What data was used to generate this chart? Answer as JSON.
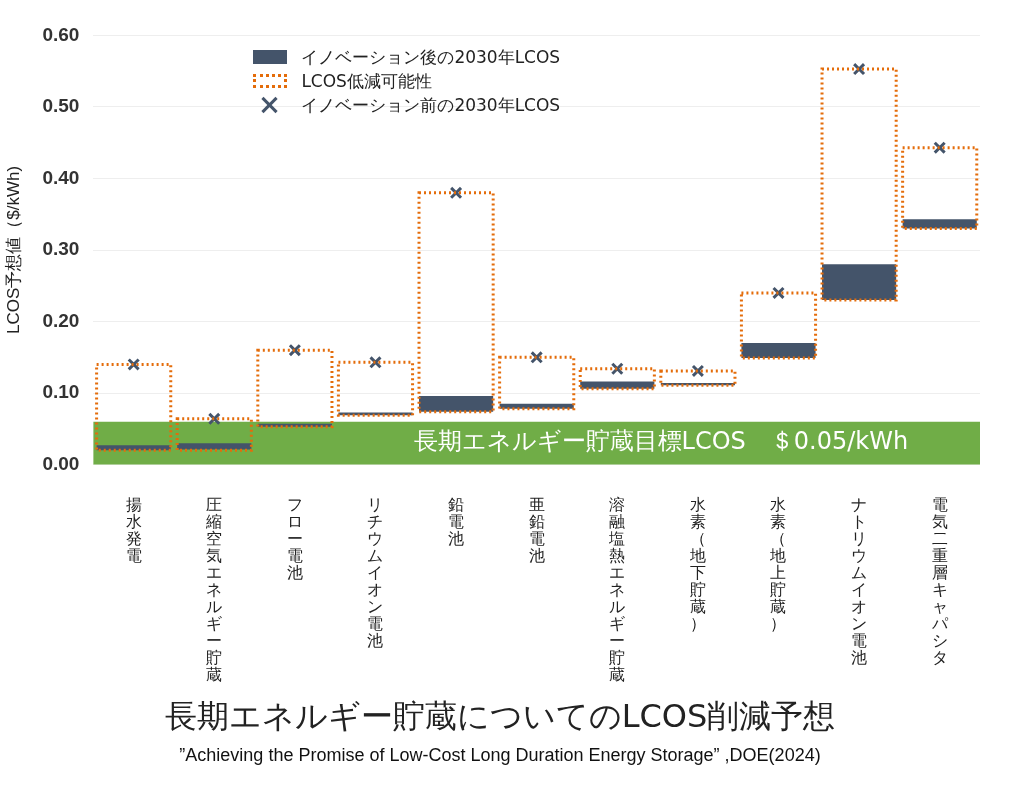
{
  "chart_data": {
    "type": "bar",
    "title": "長期エネルギー貯蔵についてのLCOS削減予想",
    "ylabel": "LCOS予想値（$/kWh)",
    "categories": [
      "揚水発電",
      "圧縮空気エネルギー貯蔵",
      "フロー電池",
      "リチウムイオン電池",
      "鉛電池",
      "亜鉛電池",
      "溶融塩熱エネルギー貯蔵",
      "水素（地下貯蔵）",
      "水素（地上貯蔵）",
      "ナトリウムイオン電池",
      "電気二重層キャパシタ"
    ],
    "series": [
      {
        "name": "イノベーション後の2030年LCOS",
        "color": "#44546a",
        "base": [
          0.02,
          0.021,
          0.053,
          0.069,
          0.074,
          0.078,
          0.106,
          0.111,
          0.149,
          0.23,
          0.33
        ],
        "values": [
          0.007,
          0.009,
          0.004,
          0.004,
          0.022,
          0.007,
          0.01,
          0.003,
          0.021,
          0.05,
          0.013
        ]
      },
      {
        "name": "LCOS低減可能性",
        "color": "#e46c0a",
        "line_style": "dotted",
        "base": [
          0.02,
          0.02,
          0.053,
          0.069,
          0.074,
          0.078,
          0.106,
          0.111,
          0.149,
          0.23,
          0.33
        ],
        "values": [
          0.12,
          0.044,
          0.107,
          0.074,
          0.306,
          0.072,
          0.028,
          0.02,
          0.091,
          0.323,
          0.113
        ]
      },
      {
        "name": "イノベーション前の2030年LCOS",
        "type": "scatter",
        "color": "#44546a",
        "marker": "cross",
        "x": [
          "揚水発電",
          "圧縮空気エネルギー貯蔵",
          "フロー電池",
          "リチウムイオン電池",
          "鉛電池",
          "亜鉛電池",
          "溶融塩熱エネルギー貯蔵",
          "水素（地下貯蔵）",
          "水素（地上貯蔵）",
          "ナトリウムイオン電池",
          "電気二重層キャパシタ"
        ],
        "values": [
          0.14,
          0.064,
          0.16,
          0.143,
          0.38,
          0.15,
          0.134,
          0.131,
          0.24,
          0.553,
          0.443
        ]
      }
    ],
    "ylim": [
      0,
      0.6
    ],
    "yticks": [
      {
        "value": 0,
        "label": "0.00"
      },
      {
        "value": 0.1,
        "label": "0.10"
      },
      {
        "value": 0.2,
        "label": "0.20"
      },
      {
        "value": 0.3,
        "label": "0.30"
      },
      {
        "value": 0.4,
        "label": "0.40"
      },
      {
        "value": 0.5,
        "label": "0.50"
      },
      {
        "value": 0.6,
        "label": "0.60"
      }
    ],
    "bands": [
      {
        "axis": "y",
        "from": 0,
        "to": 0.06,
        "label": "長期エネルギー貯蔵目標LCOS　＄0.05/kWh",
        "color": "#70ad47"
      }
    ],
    "grid": "y",
    "legend": "top left",
    "annotations": [
      "”Achieving the Promise of Low-Cost Long Duration Energy Storage” ,DOE(2024)"
    ]
  }
}
